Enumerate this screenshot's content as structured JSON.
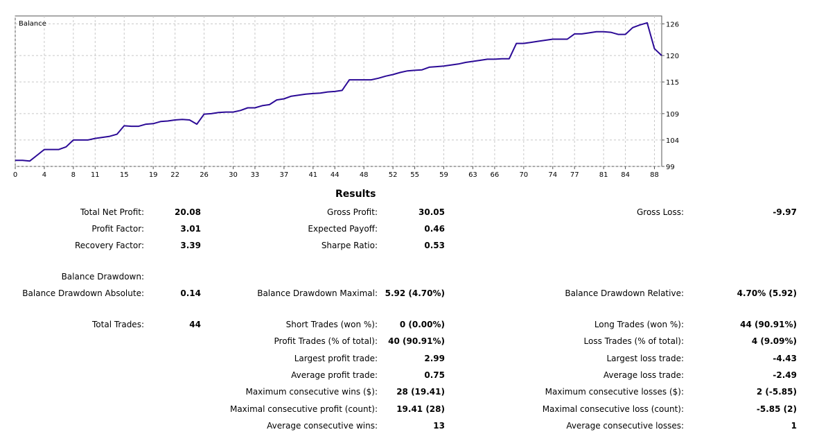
{
  "chart_data": {
    "type": "line",
    "title": "Balance",
    "series": [
      {
        "values": [
          [
            0,
            100.14
          ],
          [
            1,
            100.14
          ],
          [
            2,
            100.03
          ],
          [
            3,
            101.1
          ],
          [
            4,
            102.2
          ],
          [
            5,
            102.2
          ],
          [
            6,
            102.2
          ],
          [
            7,
            102.7
          ],
          [
            8,
            104.0
          ],
          [
            9,
            104.0
          ],
          [
            10,
            104.0
          ],
          [
            11,
            104.3
          ],
          [
            12,
            104.5
          ],
          [
            13,
            104.7
          ],
          [
            14,
            105.1
          ],
          [
            15,
            106.7
          ],
          [
            16,
            106.6
          ],
          [
            17,
            106.6
          ],
          [
            18,
            107.0
          ],
          [
            19,
            107.1
          ],
          [
            20,
            107.5
          ],
          [
            21,
            107.6
          ],
          [
            22,
            107.8
          ],
          [
            23,
            107.9
          ],
          [
            24,
            107.8
          ],
          [
            25,
            107.0
          ],
          [
            26,
            108.9
          ],
          [
            27,
            109.0
          ],
          [
            28,
            109.2
          ],
          [
            29,
            109.3
          ],
          [
            30,
            109.3
          ],
          [
            31,
            109.6
          ],
          [
            32,
            110.1
          ],
          [
            33,
            110.1
          ],
          [
            34,
            110.5
          ],
          [
            35,
            110.7
          ],
          [
            36,
            111.6
          ],
          [
            37,
            111.8
          ],
          [
            38,
            112.3
          ],
          [
            39,
            112.5
          ],
          [
            40,
            112.7
          ],
          [
            41,
            112.8
          ],
          [
            42,
            112.9
          ],
          [
            43,
            113.1
          ],
          [
            44,
            113.2
          ],
          [
            45,
            113.4
          ],
          [
            46,
            115.4
          ],
          [
            47,
            115.4
          ],
          [
            48,
            115.4
          ],
          [
            49,
            115.4
          ],
          [
            50,
            115.7
          ],
          [
            51,
            116.1
          ],
          [
            52,
            116.4
          ],
          [
            53,
            116.8
          ],
          [
            54,
            117.1
          ],
          [
            55,
            117.2
          ],
          [
            56,
            117.3
          ],
          [
            57,
            117.8
          ],
          [
            58,
            117.9
          ],
          [
            59,
            118.0
          ],
          [
            60,
            118.2
          ],
          [
            61,
            118.4
          ],
          [
            62,
            118.7
          ],
          [
            63,
            118.9
          ],
          [
            64,
            119.1
          ],
          [
            65,
            119.3
          ],
          [
            66,
            119.3
          ],
          [
            67,
            119.4
          ],
          [
            68,
            119.4
          ],
          [
            69,
            122.3
          ],
          [
            70,
            122.3
          ],
          [
            71,
            122.5
          ],
          [
            72,
            122.7
          ],
          [
            73,
            122.9
          ],
          [
            74,
            123.1
          ],
          [
            75,
            123.1
          ],
          [
            76,
            123.1
          ],
          [
            77,
            124.1
          ],
          [
            78,
            124.1
          ],
          [
            79,
            124.3
          ],
          [
            80,
            124.5
          ],
          [
            81,
            124.5
          ],
          [
            82,
            124.4
          ],
          [
            83,
            124.0
          ],
          [
            84,
            124.0
          ],
          [
            85,
            125.3
          ],
          [
            86,
            125.8
          ],
          [
            87,
            126.2
          ],
          [
            88,
            121.3
          ],
          [
            89,
            120.0
          ]
        ]
      }
    ],
    "y_ticks": [
      "126",
      "120",
      "115",
      "109",
      "104",
      "99"
    ],
    "x_ticks": [
      "0",
      "4",
      "8",
      "11",
      "15",
      "19",
      "22",
      "26",
      "30",
      "33",
      "37",
      "41",
      "44",
      "48",
      "52",
      "55",
      "59",
      "63",
      "66",
      "70",
      "74",
      "77",
      "81",
      "84",
      "88"
    ],
    "ylim": [
      99,
      127.5
    ],
    "xlim": [
      0,
      89
    ],
    "grid": true,
    "line_color": "#2b0a96"
  },
  "results": {
    "title": "Results",
    "total_net_profit_label": "Total Net Profit:",
    "total_net_profit": "20.08",
    "gross_profit_label": "Gross Profit:",
    "gross_profit": "30.05",
    "gross_loss_label": "Gross Loss:",
    "gross_loss": "-9.97",
    "profit_factor_label": "Profit Factor:",
    "profit_factor": "3.01",
    "expected_payoff_label": "Expected Payoff:",
    "expected_payoff": "0.46",
    "recovery_factor_label": "Recovery Factor:",
    "recovery_factor": "3.39",
    "sharpe_ratio_label": "Sharpe Ratio:",
    "sharpe_ratio": "0.53",
    "balance_drawdown_label": "Balance Drawdown:",
    "bd_absolute_label": "Balance Drawdown Absolute:",
    "bd_absolute": "0.14",
    "bd_maximal_label": "Balance Drawdown Maximal:",
    "bd_maximal": "5.92 (4.70%)",
    "bd_relative_label": "Balance Drawdown Relative:",
    "bd_relative": "4.70% (5.92)",
    "total_trades_label": "Total Trades:",
    "total_trades": "44",
    "short_trades_label": "Short Trades (won %):",
    "short_trades": "0 (0.00%)",
    "long_trades_label": "Long Trades (won %):",
    "long_trades": "44 (90.91%)",
    "profit_trades_label": "Profit Trades (% of total):",
    "profit_trades": "40 (90.91%)",
    "loss_trades_label": "Loss Trades (% of total):",
    "loss_trades": "4 (9.09%)",
    "largest_profit_label": "Largest profit trade:",
    "largest_profit": "2.99",
    "largest_loss_label": "Largest loss trade:",
    "largest_loss": "-4.43",
    "average_profit_label": "Average profit trade:",
    "average_profit": "0.75",
    "average_loss_label": "Average loss trade:",
    "average_loss": "-2.49",
    "max_consec_wins_label": "Maximum consecutive wins ($):",
    "max_consec_wins": "28 (19.41)",
    "max_consec_losses_label": "Maximum consecutive losses ($):",
    "max_consec_losses": "2 (-5.85)",
    "maximal_consec_profit_label": "Maximal consecutive profit (count):",
    "maximal_consec_profit": "19.41 (28)",
    "maximal_consec_loss_label": "Maximal consecutive loss (count):",
    "maximal_consec_loss": "-5.85 (2)",
    "avg_consec_wins_label": "Average consecutive wins:",
    "avg_consec_wins": "13",
    "avg_consec_losses_label": "Average consecutive losses:",
    "avg_consec_losses": "1"
  }
}
